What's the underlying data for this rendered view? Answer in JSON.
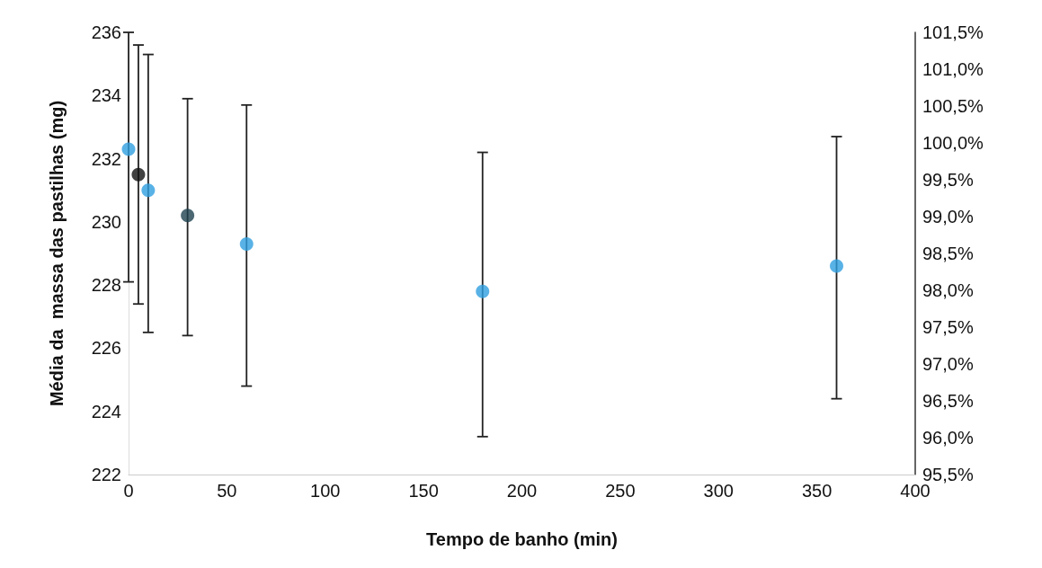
{
  "chart_data": {
    "type": "scatter",
    "xlabel": "Tempo de banho (min)",
    "ylabel": "Média da  massa das pastilhas (mg)",
    "x": [
      0,
      5,
      10,
      30,
      60,
      180,
      360
    ],
    "values": [
      232.3,
      231.5,
      231.0,
      230.2,
      229.3,
      227.8,
      228.6
    ],
    "colors": [
      "#2f9fe0",
      "#111111",
      "#2f9fe0",
      "#1e4250",
      "#2f9fe0",
      "#2f9fe0",
      "#2f9fe0"
    ],
    "errors": [
      [
        228.1,
        236
      ],
      [
        227.4,
        235.6
      ],
      [
        226.5,
        235.3
      ],
      [
        226.4,
        233.9
      ],
      [
        224.8,
        233.7
      ],
      [
        223.2,
        232.2
      ],
      [
        224.4,
        232.7
      ]
    ],
    "xlim": [
      0,
      400
    ],
    "xticks": [
      0,
      50,
      100,
      150,
      200,
      250,
      300,
      350,
      400
    ],
    "ylim": [
      222,
      236
    ],
    "yticks": [
      222,
      224,
      226,
      228,
      230,
      232,
      234,
      236
    ],
    "y2lim": [
      95.5,
      101.5
    ],
    "y2ticks": [
      {
        "value": 95.5,
        "label": "95,5%"
      },
      {
        "value": 96,
        "label": "96,0%"
      },
      {
        "value": 96.5,
        "label": "96,5%"
      },
      {
        "value": 97,
        "label": "97,0%"
      },
      {
        "value": 97.5,
        "label": "97,5%"
      },
      {
        "value": 98,
        "label": "98,0%"
      },
      {
        "value": 98.5,
        "label": "98,5%"
      },
      {
        "value": 99,
        "label": "99,0%"
      },
      {
        "value": 99.5,
        "label": "99,5%"
      },
      {
        "value": 100,
        "label": "100,0%"
      },
      {
        "value": 100.5,
        "label": "100,5%"
      },
      {
        "value": 101,
        "label": "101,0%"
      },
      {
        "value": 101.5,
        "label": "101,5%"
      }
    ],
    "grid": false,
    "marker": "circle"
  }
}
